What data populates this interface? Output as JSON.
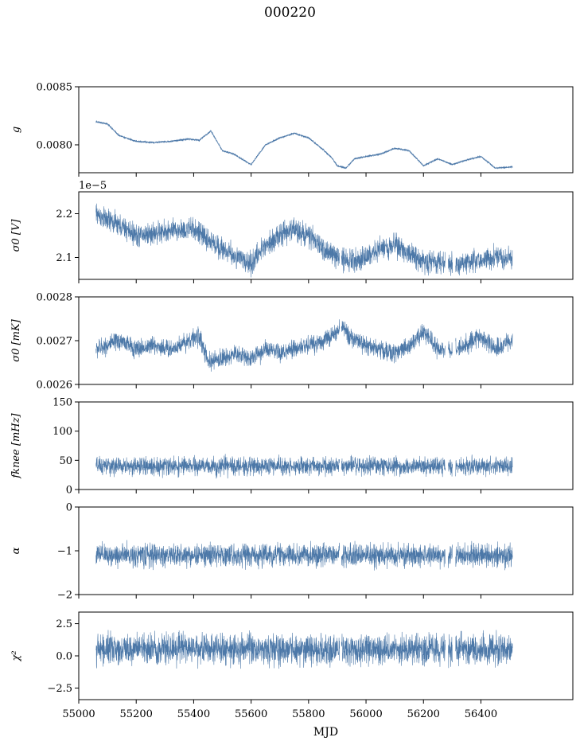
{
  "figure": {
    "title": "000220",
    "xlabel": "MJD"
  },
  "chart_data": [
    {
      "type": "line",
      "ylabel": "g",
      "ylim": [
        0.00776,
        0.0085
      ],
      "yticks": [
        0.008,
        0.0085
      ],
      "ytick_labels": [
        "0.0080",
        "0.0085"
      ],
      "offset_text": "",
      "xlim": [
        55000,
        56720
      ],
      "x": [
        55060,
        55100,
        55140,
        55200,
        55260,
        55320,
        55380,
        55420,
        55460,
        55500,
        55540,
        55600,
        55650,
        55700,
        55750,
        55800,
        55850,
        55880,
        55900,
        55930,
        55960,
        56000,
        56050,
        56100,
        56150,
        56200,
        56250,
        56300,
        56350,
        56400,
        56450,
        56510
      ],
      "y": [
        0.0082,
        0.00818,
        0.00808,
        0.00803,
        0.00802,
        0.00803,
        0.00805,
        0.00804,
        0.00812,
        0.00795,
        0.00792,
        0.00783,
        0.008,
        0.00806,
        0.0081,
        0.00806,
        0.00796,
        0.00789,
        0.00782,
        0.0078,
        0.00788,
        0.0079,
        0.00792,
        0.00797,
        0.00795,
        0.00782,
        0.00788,
        0.00783,
        0.00787,
        0.0079,
        0.0078,
        0.00781
      ],
      "noise": 1.6e-05,
      "ticks_only": false
    },
    {
      "type": "line",
      "ylabel": "σ0 [V]",
      "ylim": [
        2.05,
        2.25
      ],
      "yticks": [
        2.1,
        2.2
      ],
      "ytick_labels": [
        "2.1",
        "2.2"
      ],
      "offset_text": "1e−5",
      "xlim": [
        55000,
        56720
      ],
      "x": [
        55060,
        55100,
        55150,
        55200,
        55260,
        55320,
        55400,
        55450,
        55500,
        55550,
        55600,
        55650,
        55700,
        55750,
        55800,
        55850,
        55900,
        55950,
        56000,
        56050,
        56100,
        56150,
        56200,
        56250,
        56300,
        56350,
        56400,
        56450,
        56510
      ],
      "y": [
        2.2,
        2.185,
        2.17,
        2.15,
        2.155,
        2.16,
        2.165,
        2.14,
        2.12,
        2.1,
        2.085,
        2.13,
        2.15,
        2.165,
        2.15,
        2.12,
        2.1,
        2.095,
        2.1,
        2.12,
        2.13,
        2.11,
        2.09,
        2.09,
        2.085,
        2.09,
        2.095,
        2.1,
        2.1
      ],
      "noise": 0.022,
      "ticks_only": false
    },
    {
      "type": "line",
      "ylabel": "σ0 [mK]",
      "ylim": [
        0.0026,
        0.0028
      ],
      "yticks": [
        0.0026,
        0.0027,
        0.0028
      ],
      "ytick_labels": [
        "0.0026",
        "0.0027",
        "0.0028"
      ],
      "offset_text": "",
      "xlim": [
        55000,
        56720
      ],
      "x": [
        55060,
        55100,
        55150,
        55200,
        55260,
        55320,
        55380,
        55420,
        55450,
        55500,
        55550,
        55600,
        55650,
        55700,
        55750,
        55800,
        55850,
        55880,
        55920,
        55960,
        56000,
        56050,
        56100,
        56150,
        56200,
        56250,
        56300,
        56350,
        56400,
        56450,
        56510
      ],
      "y": [
        0.00268,
        0.00269,
        0.0027,
        0.00268,
        0.00269,
        0.00268,
        0.0027,
        0.00271,
        0.00265,
        0.00266,
        0.00267,
        0.00266,
        0.00268,
        0.00267,
        0.00268,
        0.00269,
        0.0027,
        0.00271,
        0.00273,
        0.0027,
        0.00269,
        0.00268,
        0.00267,
        0.00269,
        0.00272,
        0.00268,
        0.00268,
        0.00269,
        0.00271,
        0.00268,
        0.0027
      ],
      "noise": 1.8e-05,
      "ticks_only": false
    },
    {
      "type": "line",
      "ylabel": "fknee [mHz]",
      "ylim": [
        0,
        150
      ],
      "yticks": [
        0,
        50,
        100,
        150
      ],
      "ytick_labels": [
        "0",
        "50",
        "100",
        "150"
      ],
      "offset_text": "",
      "xlim": [
        55000,
        56720
      ],
      "x": [
        55060,
        55300,
        55600,
        55900,
        56200,
        56510
      ],
      "y": [
        40,
        40,
        40,
        40,
        40,
        40
      ],
      "noise": 13,
      "ticks_only": false
    },
    {
      "type": "line",
      "ylabel": "α",
      "ylim": [
        -2,
        0
      ],
      "yticks": [
        -2,
        -1,
        0
      ],
      "ytick_labels": [
        "−2",
        "−1",
        "0"
      ],
      "offset_text": "",
      "xlim": [
        55000,
        56720
      ],
      "x": [
        55060,
        55300,
        55600,
        55900,
        56200,
        56510
      ],
      "y": [
        -1.1,
        -1.1,
        -1.1,
        -1.1,
        -1.1,
        -1.1
      ],
      "noise": 0.22,
      "ticks_only": false
    },
    {
      "type": "line",
      "ylabel": "χ²",
      "ylim": [
        -3.4,
        3.4
      ],
      "yticks": [
        -2.5,
        0.0,
        2.5
      ],
      "ytick_labels": [
        "−2.5",
        "0.0",
        "2.5"
      ],
      "offset_text": "",
      "xlim": [
        55000,
        56720
      ],
      "x": [
        55060,
        55300,
        55600,
        55900,
        56200,
        56510
      ],
      "y": [
        0.5,
        0.6,
        0.5,
        0.5,
        0.5,
        0.5
      ],
      "noise": 1.0,
      "ticks_only": true
    }
  ],
  "shared_x": {
    "ticks": [
      55000,
      55200,
      55400,
      55600,
      55800,
      56000,
      56200,
      56400
    ],
    "tick_labels": [
      "55000",
      "55200",
      "55400",
      "55600",
      "55800",
      "56000",
      "56200",
      "56400"
    ],
    "gaps": [
      [
        55908,
        55914
      ],
      [
        56276,
        56286
      ],
      [
        56301,
        56312
      ]
    ]
  },
  "colors": {
    "line": "#4c78a8",
    "axes": "#000000",
    "background": "#ffffff"
  }
}
